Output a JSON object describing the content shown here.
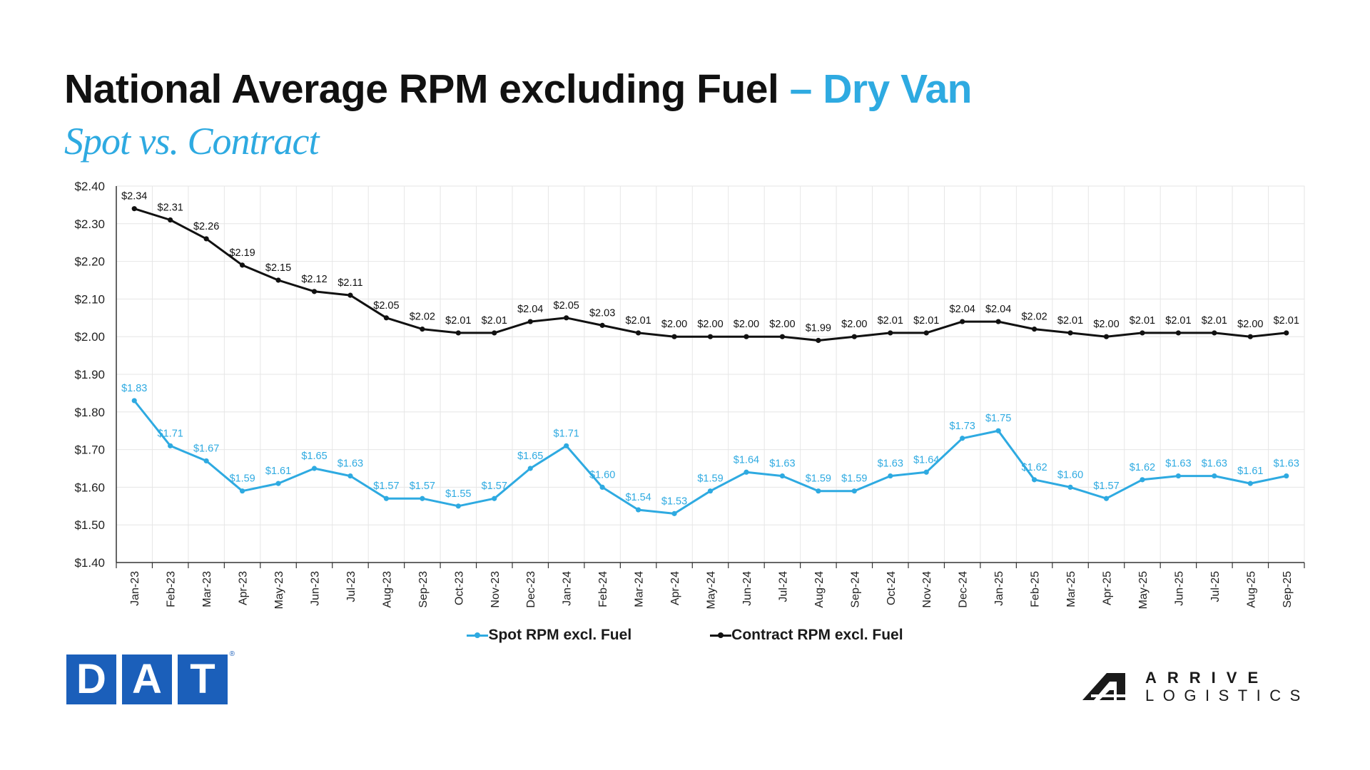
{
  "header": {
    "title_main": "National Average RPM excluding Fuel",
    "title_accent": "– Dry Van",
    "subtitle": "Spot vs. Contract"
  },
  "colors": {
    "spot": "#2eaae1",
    "contract": "#111111",
    "accent": "#2eaae1",
    "dat_blue": "#1b5fba",
    "grid": "#e6e6e6"
  },
  "chart_data": {
    "type": "line",
    "x": [
      "Jan-23",
      "Feb-23",
      "Mar-23",
      "Apr-23",
      "May-23",
      "Jun-23",
      "Jul-23",
      "Aug-23",
      "Sep-23",
      "Oct-23",
      "Nov-23",
      "Dec-23",
      "Jan-24",
      "Feb-24",
      "Mar-24",
      "Apr-24",
      "May-24",
      "Jun-24",
      "Jul-24",
      "Aug-24",
      "Sep-24",
      "Oct-24",
      "Nov-24",
      "Dec-24",
      "Jan-25",
      "Feb-25",
      "Mar-25",
      "Apr-25",
      "May-25",
      "Jun-25",
      "Jul-25",
      "Aug-25",
      "Sep-25"
    ],
    "series": [
      {
        "name": "Spot RPM excl. Fuel",
        "values": [
          1.83,
          1.71,
          1.67,
          1.59,
          1.61,
          1.65,
          1.63,
          1.57,
          1.57,
          1.55,
          1.57,
          1.65,
          1.71,
          1.6,
          1.54,
          1.53,
          1.59,
          1.64,
          1.63,
          1.59,
          1.59,
          1.63,
          1.64,
          1.73,
          1.75,
          1.62,
          1.6,
          1.57,
          1.62,
          1.63,
          1.63,
          1.61,
          1.63
        ]
      },
      {
        "name": "Contract RPM excl. Fuel",
        "values": [
          2.34,
          2.31,
          2.26,
          2.19,
          2.15,
          2.12,
          2.11,
          2.05,
          2.02,
          2.01,
          2.01,
          2.04,
          2.05,
          2.03,
          2.01,
          2.0,
          2.0,
          2.0,
          2.0,
          1.99,
          2.0,
          2.01,
          2.01,
          2.04,
          2.04,
          2.02,
          2.01,
          2.0,
          2.01,
          2.01,
          2.01,
          2.0,
          2.01
        ]
      }
    ],
    "y_ticks": [
      "$1.40",
      "$1.50",
      "$1.60",
      "$1.70",
      "$1.80",
      "$1.90",
      "$2.00",
      "$2.10",
      "$2.20",
      "$2.30",
      "$2.40"
    ],
    "ylim": [
      1.4,
      2.4
    ],
    "value_prefix": "$",
    "grid": true,
    "legend_position": "bottom-center"
  },
  "logos": {
    "dat_letters": [
      "D",
      "A",
      "T"
    ],
    "dat_mark": "®",
    "arrive_line1": "ARRIVE",
    "arrive_line2": "LOGISTICS"
  }
}
